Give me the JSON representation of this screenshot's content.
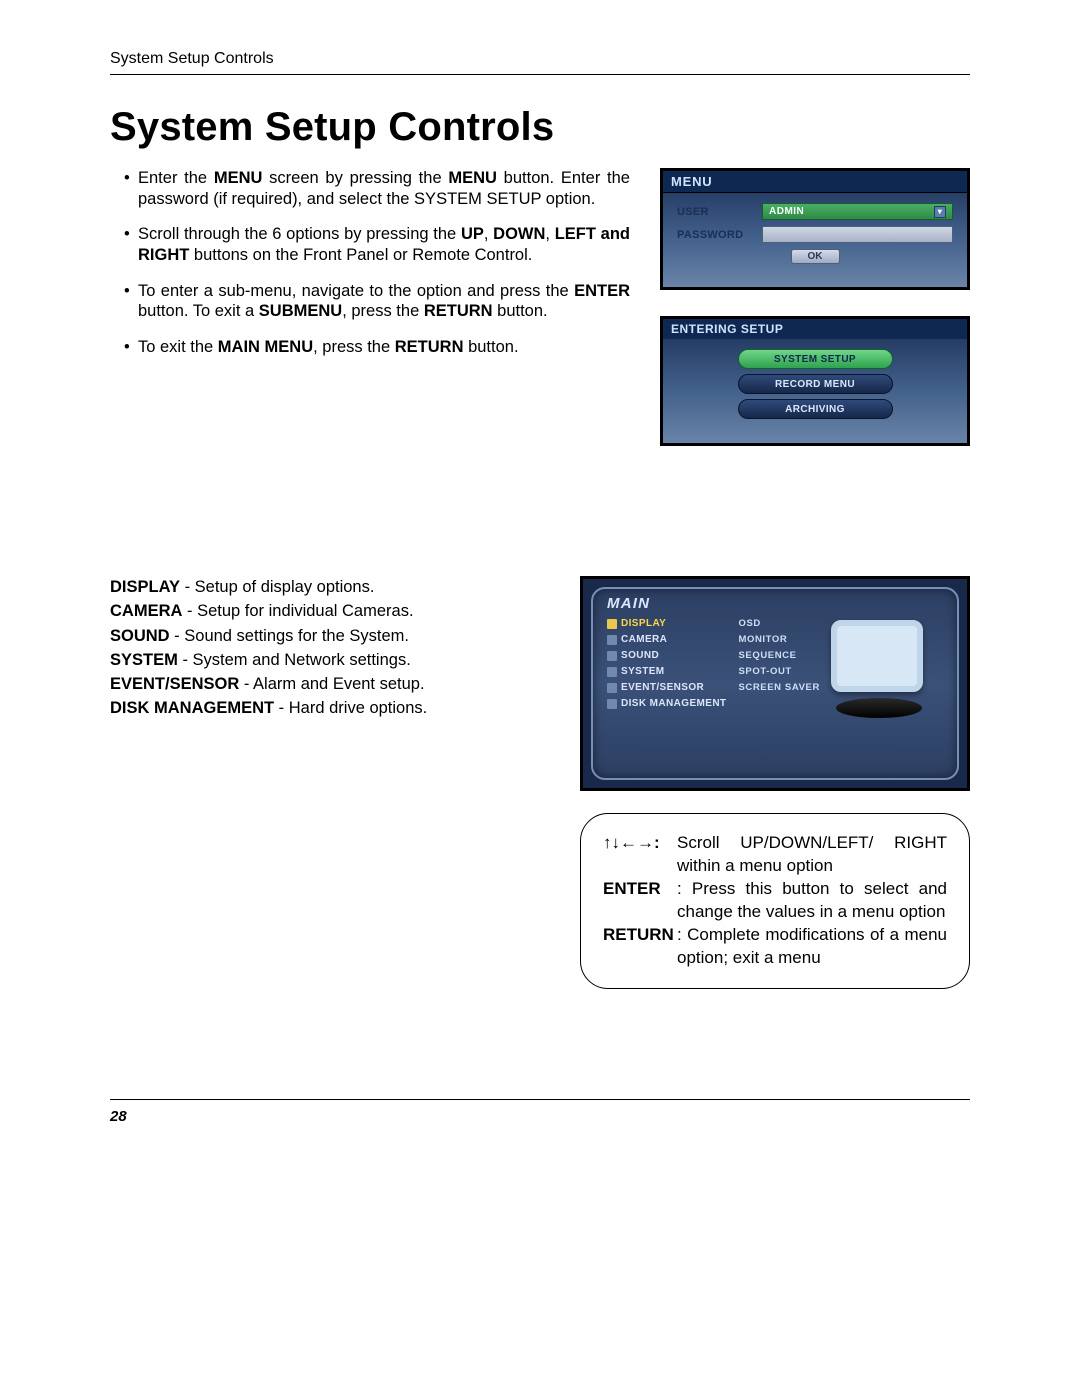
{
  "header_small": "System Setup Controls",
  "page_title": "System Setup Controls",
  "bullets": [
    {
      "pre": "Enter the ",
      "b1": "MENU",
      "mid1": " screen by pressing the ",
      "b2": "MENU",
      "mid2": " button. Enter the password (if required), and select the SYSTEM SETUP option."
    },
    {
      "pre": "Scroll through the 6 options by pressing the ",
      "b1": "UP",
      "mid1": ", ",
      "b2": "DOWN",
      "mid2": ", ",
      "b3": "LEFT and RIGHT",
      "mid3": " buttons on the Front Panel or Remote Control."
    },
    {
      "pre": "To enter a sub-menu, navigate to the option and press the ",
      "b1": "ENTER",
      "mid1": " button. To exit a ",
      "b2": "SUBMENU",
      "mid2": ", press the ",
      "b3": "RETURN",
      "mid3": " button."
    },
    {
      "pre": "To exit the ",
      "b1": "MAIN MENU",
      "mid1": ", press the ",
      "b2": "RETURN",
      "mid2": " button."
    }
  ],
  "shot_menu": {
    "title": "MENU",
    "user_label": "USER",
    "user_value": "ADMIN",
    "password_label": "PASSWORD",
    "ok_label": "OK"
  },
  "shot_setup": {
    "title": "ENTERING SETUP",
    "option1": "SYSTEM SETUP",
    "option2": "RECORD MENU",
    "option3": "ARCHIVING"
  },
  "option_desc": [
    {
      "key": "DISPLAY",
      "val": " - Setup of display options."
    },
    {
      "key": "CAMERA",
      "val": " - Setup for individual Cameras."
    },
    {
      "key": "SOUND",
      "val": " - Sound settings for the System."
    },
    {
      "key": "SYSTEM",
      "val": " - System and Network settings."
    },
    {
      "key": "EVENT/SENSOR",
      "val": " - Alarm and Event setup."
    },
    {
      "key": "DISK MANAGEMENT",
      "val": " - Hard drive options."
    }
  ],
  "shot_main": {
    "title": "MAIN",
    "col1": [
      "DISPLAY",
      "CAMERA",
      "SOUND",
      "SYSTEM",
      "EVENT/SENSOR",
      "DISK MANAGEMENT"
    ],
    "col2": [
      "OSD",
      "MONITOR",
      "SEQUENCE",
      "SPOT-OUT",
      "SCREEN SAVER"
    ]
  },
  "hint": {
    "arrows": "↑↓←→",
    "arrows_colon": ":",
    "arrows_text": "Scroll UP/DOWN/LEFT/ RIGHT within a menu option",
    "enter_key": "ENTER",
    "enter_text": ": Press this button to select and change the values in a menu option",
    "return_key": "RETURN",
    "return_text": ": Complete modifications of a menu option; exit a menu"
  },
  "page_number": "28"
}
